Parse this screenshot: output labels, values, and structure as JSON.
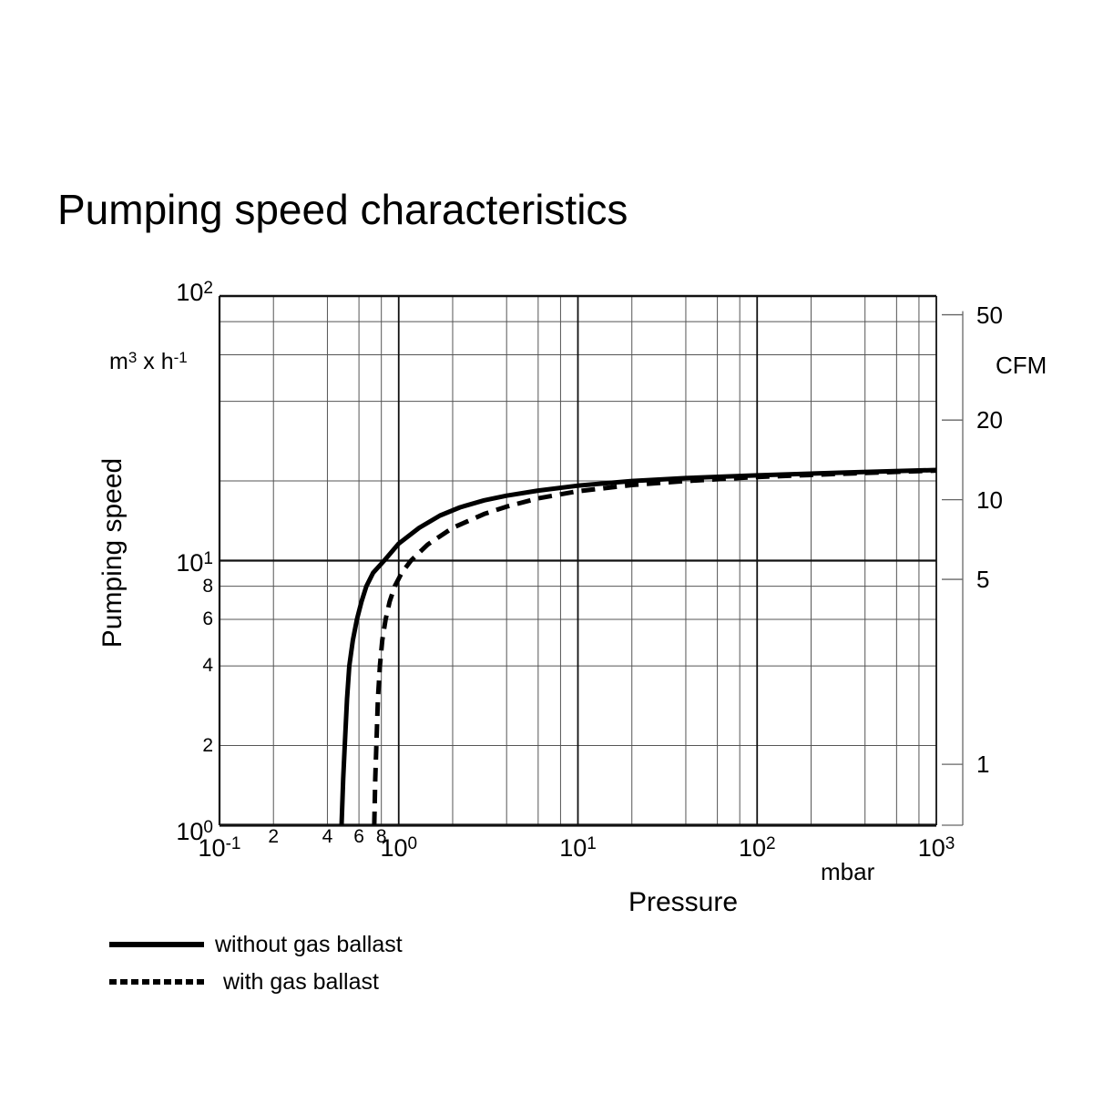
{
  "title": "Pumping speed characteristics",
  "chart_data": {
    "type": "line",
    "title": "Pumping speed characteristics",
    "xlabel": "Pressure",
    "x_unit": "mbar",
    "ylabel": "Pumping speed",
    "y_unit": {
      "pre": "m",
      "sup1": "3",
      "mid": " x h",
      "sup2": "-1"
    },
    "x_scale": "log",
    "x_range": [
      0.1,
      1000
    ],
    "y_scale": "log",
    "y_range": [
      1,
      100
    ],
    "grid": "log minor lines at 2,4,6,8 of every decade, both axes",
    "x_major_ticks": [
      {
        "base": "10",
        "exp": "-1",
        "value": 0.1
      },
      {
        "base": "10",
        "exp": "0",
        "value": 1
      },
      {
        "base": "10",
        "exp": "1",
        "value": 10
      },
      {
        "base": "10",
        "exp": "2",
        "value": 100
      },
      {
        "base": "10",
        "exp": "3",
        "value": 1000
      }
    ],
    "x_minor_labeled_ticks": [
      {
        "label": "2",
        "value": 0.2
      },
      {
        "label": "4",
        "value": 0.4
      },
      {
        "label": "6",
        "value": 0.6
      },
      {
        "label": "8",
        "value": 0.8
      }
    ],
    "y_major_ticks": [
      {
        "base": "10",
        "exp": "2",
        "value": 100
      },
      {
        "base": "10",
        "exp": "1",
        "value": 10
      },
      {
        "base": "10",
        "exp": "0",
        "value": 1
      }
    ],
    "y_minor_labeled_ticks": [
      {
        "label": "8",
        "value": 8
      },
      {
        "label": "6",
        "value": 6
      },
      {
        "label": "4",
        "value": 4
      },
      {
        "label": "2",
        "value": 2
      }
    ],
    "right_axis": {
      "label": "CFM",
      "cfm_per_m3h": 0.58858,
      "ticks": [
        {
          "label": "50",
          "value": 50
        },
        {
          "label": "20",
          "value": 20
        },
        {
          "label": "10",
          "value": 10
        },
        {
          "label": "5",
          "value": 5
        },
        {
          "label": "1",
          "value": 1
        }
      ]
    },
    "series": [
      {
        "name": "without gas ballast",
        "style": "solid",
        "points_p_mbar_S_m3h": [
          [
            0.48,
            1.0
          ],
          [
            0.49,
            1.5
          ],
          [
            0.5,
            2.0
          ],
          [
            0.515,
            3.0
          ],
          [
            0.53,
            4.0
          ],
          [
            0.555,
            5.0
          ],
          [
            0.585,
            6.0
          ],
          [
            0.62,
            7.0
          ],
          [
            0.66,
            8.0
          ],
          [
            0.72,
            9.0
          ],
          [
            0.83,
            10.0
          ],
          [
            1.0,
            11.6
          ],
          [
            1.3,
            13.3
          ],
          [
            1.7,
            14.8
          ],
          [
            2.2,
            15.9
          ],
          [
            3.0,
            16.9
          ],
          [
            4.0,
            17.6
          ],
          [
            6.0,
            18.4
          ],
          [
            10.0,
            19.2
          ],
          [
            20.0,
            20.0
          ],
          [
            40.0,
            20.5
          ],
          [
            100.0,
            21.0
          ],
          [
            300.0,
            21.5
          ],
          [
            1000.0,
            22.0
          ]
        ]
      },
      {
        "name": "with gas ballast",
        "style": "dashed",
        "points_p_mbar_S_m3h": [
          [
            0.73,
            1.0
          ],
          [
            0.74,
            1.5
          ],
          [
            0.75,
            2.0
          ],
          [
            0.765,
            3.0
          ],
          [
            0.785,
            4.0
          ],
          [
            0.81,
            5.0
          ],
          [
            0.845,
            6.0
          ],
          [
            0.89,
            7.0
          ],
          [
            0.95,
            8.0
          ],
          [
            1.04,
            9.0
          ],
          [
            1.17,
            10.0
          ],
          [
            1.45,
            11.5
          ],
          [
            2.0,
            13.3
          ],
          [
            3.0,
            15.0
          ],
          [
            4.0,
            16.0
          ],
          [
            6.0,
            17.2
          ],
          [
            10.0,
            18.3
          ],
          [
            20.0,
            19.3
          ],
          [
            40.0,
            20.0
          ],
          [
            100.0,
            20.7
          ],
          [
            300.0,
            21.3
          ],
          [
            1000.0,
            21.9
          ]
        ]
      }
    ],
    "legend": [
      {
        "label": "without gas ballast",
        "style": "solid"
      },
      {
        "label": "with gas ballast",
        "style": "dashed"
      }
    ]
  }
}
